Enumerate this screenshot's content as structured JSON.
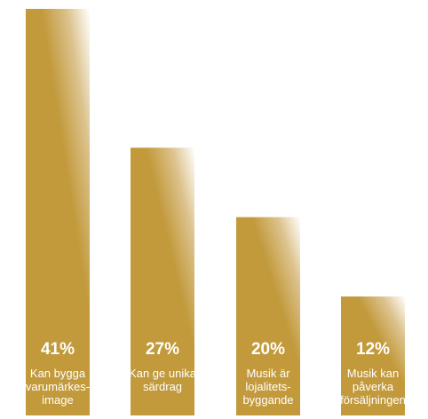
{
  "chart_data": {
    "type": "bar",
    "categories": [
      "Kan bygga varumärkes- image",
      "Kan ge unika särdrag",
      "Musik är lojalitets- byggande",
      "Musik kan påverka försäljningen"
    ],
    "values": [
      41,
      27,
      20,
      12
    ],
    "value_labels": [
      "41%",
      "27%",
      "20%",
      "12%"
    ],
    "category_label_lines": [
      [
        "Kan bygga",
        "varumärkes-",
        "image"
      ],
      [
        "Kan ge unika",
        "särdrag"
      ],
      [
        "Musik är",
        "lojalitets-",
        "byggande"
      ],
      [
        "Musik kan",
        "påverka",
        "försäljningen"
      ]
    ],
    "ylim": [
      0,
      41
    ],
    "grid": false,
    "legend": "none",
    "title": "",
    "xlabel": "",
    "ylabel": "",
    "colors": {
      "bar_dark": "#c29a3c",
      "bar_light": "#ffffff",
      "text": "#ffffff"
    }
  }
}
